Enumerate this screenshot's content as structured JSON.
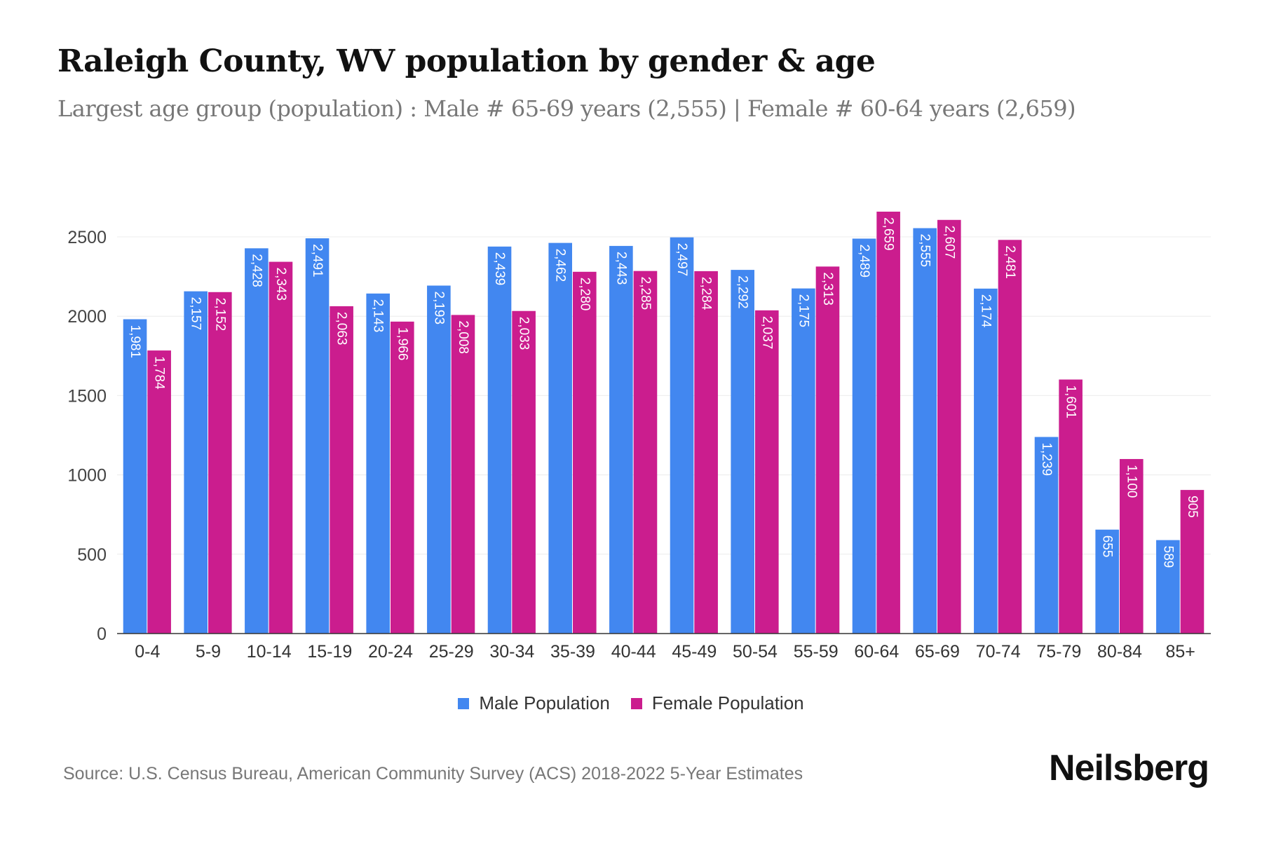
{
  "title": "Raleigh County, WV population by gender & age",
  "subtitle": "Largest age group (population) : Male # 65-69 years (2,555) | Female # 60-64 years (2,659)",
  "source": "Source: U.S. Census Bureau, American Community Survey (ACS) 2018-2022 5-Year Estimates",
  "logo": "Neilsberg",
  "colors": {
    "male": "#4287F0",
    "female": "#CB1D8E"
  },
  "chart_data": {
    "type": "bar",
    "title": "Raleigh County, WV population by gender & age",
    "xlabel": "",
    "ylabel": "",
    "ylim": [
      0,
      2700
    ],
    "yticks": [
      0,
      500,
      1000,
      1500,
      2000,
      2500
    ],
    "grid": true,
    "legend_position": "bottom-center",
    "categories": [
      "0-4",
      "5-9",
      "10-14",
      "15-19",
      "20-24",
      "25-29",
      "30-34",
      "35-39",
      "40-44",
      "45-49",
      "50-54",
      "55-59",
      "60-64",
      "65-69",
      "70-74",
      "75-79",
      "80-84",
      "85+"
    ],
    "series": [
      {
        "name": "Male Population",
        "values": [
          1981,
          2157,
          2428,
          2491,
          2143,
          2193,
          2439,
          2462,
          2443,
          2497,
          2292,
          2175,
          2489,
          2555,
          2174,
          1239,
          655,
          589
        ]
      },
      {
        "name": "Female Population",
        "values": [
          1784,
          2152,
          2343,
          2063,
          1966,
          2008,
          2033,
          2280,
          2285,
          2284,
          2037,
          2313,
          2659,
          2607,
          2481,
          1601,
          1100,
          905
        ]
      }
    ]
  }
}
